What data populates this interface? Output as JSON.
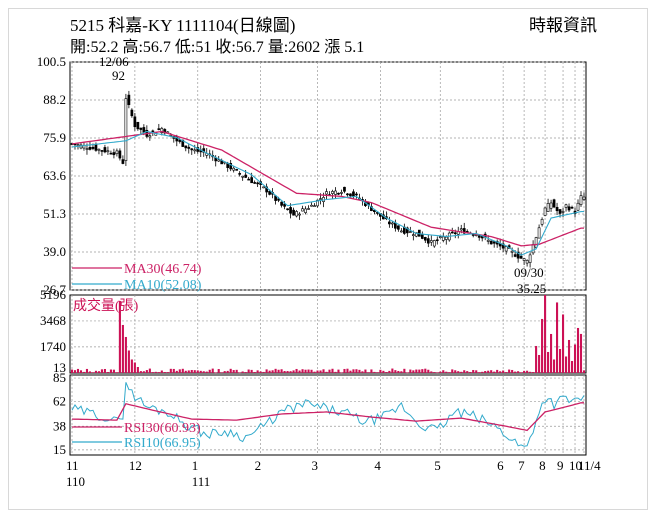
{
  "header": {
    "title": "5215  科嘉-KY 1111104(日線圖)",
    "source": "時報資訊",
    "stats": "開:52.2 高:56.7 低:51 收:56.7 量:2602 漲 5.1"
  },
  "annotations": {
    "peak_date": "12/06",
    "peak_value": "92",
    "low_date": "09/30",
    "low_value": "35.25"
  },
  "chart_data": [
    {
      "type": "candlestick",
      "panel": "price",
      "ylim": [
        26.7,
        100.5
      ],
      "y_ticks": [
        "100.5",
        "88.2",
        "75.9",
        "63.6",
        "51.3",
        "39.0",
        "26.7"
      ],
      "legend": [
        {
          "label": "MA30(46.74)",
          "color": "#cc2266"
        },
        {
          "label": "MA10(52.08)",
          "color": "#33aacc"
        }
      ],
      "grid": true,
      "close_anchors": [
        [
          0,
          74
        ],
        [
          10,
          72
        ],
        [
          15,
          71
        ],
        [
          17,
          68
        ],
        [
          18,
          89
        ],
        [
          21,
          80
        ],
        [
          25,
          77
        ],
        [
          30,
          79
        ],
        [
          35,
          75
        ],
        [
          40,
          72
        ],
        [
          45,
          71
        ],
        [
          50,
          68
        ],
        [
          55,
          65
        ],
        [
          60,
          62
        ],
        [
          65,
          59
        ],
        [
          70,
          54
        ],
        [
          74,
          51
        ],
        [
          80,
          54
        ],
        [
          85,
          58
        ],
        [
          90,
          59
        ],
        [
          95,
          57
        ],
        [
          100,
          53
        ],
        [
          105,
          49
        ],
        [
          110,
          46
        ],
        [
          115,
          45
        ],
        [
          120,
          42
        ],
        [
          125,
          44
        ],
        [
          130,
          46
        ],
        [
          135,
          45
        ],
        [
          140,
          42
        ],
        [
          145,
          40
        ],
        [
          150,
          37
        ],
        [
          152,
          36
        ],
        [
          155,
          44
        ],
        [
          158,
          53
        ],
        [
          160,
          55
        ],
        [
          163,
          51
        ],
        [
          165,
          54
        ],
        [
          168,
          52
        ],
        [
          170,
          56.7
        ]
      ],
      "ma30_anchors": [
        [
          0,
          74
        ],
        [
          30,
          78
        ],
        [
          50,
          72
        ],
        [
          75,
          58
        ],
        [
          90,
          57
        ],
        [
          100,
          55
        ],
        [
          110,
          51
        ],
        [
          120,
          47
        ],
        [
          140,
          44
        ],
        [
          150,
          41
        ],
        [
          156,
          41.5
        ],
        [
          170,
          46.74
        ]
      ],
      "ma10_anchors": [
        [
          0,
          73
        ],
        [
          18,
          75
        ],
        [
          25,
          78
        ],
        [
          35,
          76
        ],
        [
          45,
          71
        ],
        [
          60,
          64
        ],
        [
          72,
          54
        ],
        [
          85,
          56
        ],
        [
          95,
          57
        ],
        [
          105,
          50
        ],
        [
          115,
          45
        ],
        [
          125,
          44
        ],
        [
          135,
          45
        ],
        [
          145,
          41
        ],
        [
          150,
          38
        ],
        [
          155,
          40
        ],
        [
          160,
          50
        ],
        [
          170,
          52.08
        ]
      ]
    },
    {
      "type": "bar",
      "panel": "volume",
      "title": "成交量(張)",
      "ylim": [
        0,
        5196
      ],
      "y_ticks": [
        "5196",
        "3468",
        "1740",
        "13"
      ],
      "color": "#cc1155",
      "spikes": [
        [
          16,
          4800
        ],
        [
          17,
          3200
        ],
        [
          18,
          2400
        ],
        [
          19,
          1500
        ],
        [
          20,
          900
        ],
        [
          21,
          700
        ],
        [
          22,
          400
        ],
        [
          155,
          1800
        ],
        [
          156,
          1200
        ],
        [
          157,
          3600
        ],
        [
          158,
          5196
        ],
        [
          159,
          1400
        ],
        [
          160,
          2600
        ],
        [
          161,
          900
        ],
        [
          162,
          4700
        ],
        [
          163,
          1600
        ],
        [
          164,
          3900
        ],
        [
          165,
          1100
        ],
        [
          166,
          2200
        ],
        [
          167,
          800
        ],
        [
          168,
          1900
        ],
        [
          169,
          3000
        ],
        [
          170,
          2602
        ]
      ]
    },
    {
      "type": "line",
      "panel": "rsi",
      "ylim": [
        10,
        88
      ],
      "y_ticks": [
        "85",
        "62",
        "38",
        "15"
      ],
      "legend": [
        {
          "label": "RSI30(60.93)",
          "color": "#cc2266"
        },
        {
          "label": "RSI10(66.95)",
          "color": "#33aacc"
        }
      ],
      "rsi10_anchors": [
        [
          0,
          55
        ],
        [
          10,
          48
        ],
        [
          15,
          42
        ],
        [
          17,
          50
        ],
        [
          18,
          82
        ],
        [
          20,
          70
        ],
        [
          25,
          57
        ],
        [
          32,
          52
        ],
        [
          38,
          40
        ],
        [
          45,
          30
        ],
        [
          52,
          33
        ],
        [
          58,
          27
        ],
        [
          65,
          40
        ],
        [
          70,
          52
        ],
        [
          78,
          60
        ],
        [
          85,
          55
        ],
        [
          92,
          50
        ],
        [
          98,
          42
        ],
        [
          105,
          48
        ],
        [
          110,
          58
        ],
        [
          116,
          40
        ],
        [
          122,
          34
        ],
        [
          128,
          52
        ],
        [
          134,
          48
        ],
        [
          140,
          40
        ],
        [
          146,
          28
        ],
        [
          150,
          18
        ],
        [
          152,
          18
        ],
        [
          155,
          45
        ],
        [
          158,
          66
        ],
        [
          161,
          60
        ],
        [
          164,
          65
        ],
        [
          167,
          62
        ],
        [
          170,
          66.95
        ]
      ],
      "rsi30_anchors": [
        [
          0,
          45
        ],
        [
          15,
          44
        ],
        [
          18,
          60
        ],
        [
          25,
          55
        ],
        [
          40,
          45
        ],
        [
          55,
          44
        ],
        [
          70,
          50
        ],
        [
          85,
          52
        ],
        [
          100,
          47
        ],
        [
          115,
          43
        ],
        [
          130,
          46
        ],
        [
          145,
          38
        ],
        [
          152,
          34
        ],
        [
          158,
          52
        ],
        [
          165,
          57
        ],
        [
          170,
          60.93
        ]
      ]
    }
  ],
  "x_axis": {
    "ticks": [
      {
        "i": 0,
        "label": "11",
        "sub": "110"
      },
      {
        "i": 21,
        "label": "12"
      },
      {
        "i": 42,
        "label": "1",
        "sub": "111"
      },
      {
        "i": 63,
        "label": "2"
      },
      {
        "i": 82,
        "label": "3"
      },
      {
        "i": 103,
        "label": "4"
      },
      {
        "i": 123,
        "label": "5"
      },
      {
        "i": 144,
        "label": "6"
      },
      {
        "i": 151,
        "label": "7"
      },
      {
        "i": 158,
        "label": "8"
      },
      {
        "i": 164,
        "label": "9"
      },
      {
        "i": 168,
        "label": "10"
      },
      {
        "i": 171,
        "label": "11/4"
      }
    ],
    "n_days": 172
  }
}
